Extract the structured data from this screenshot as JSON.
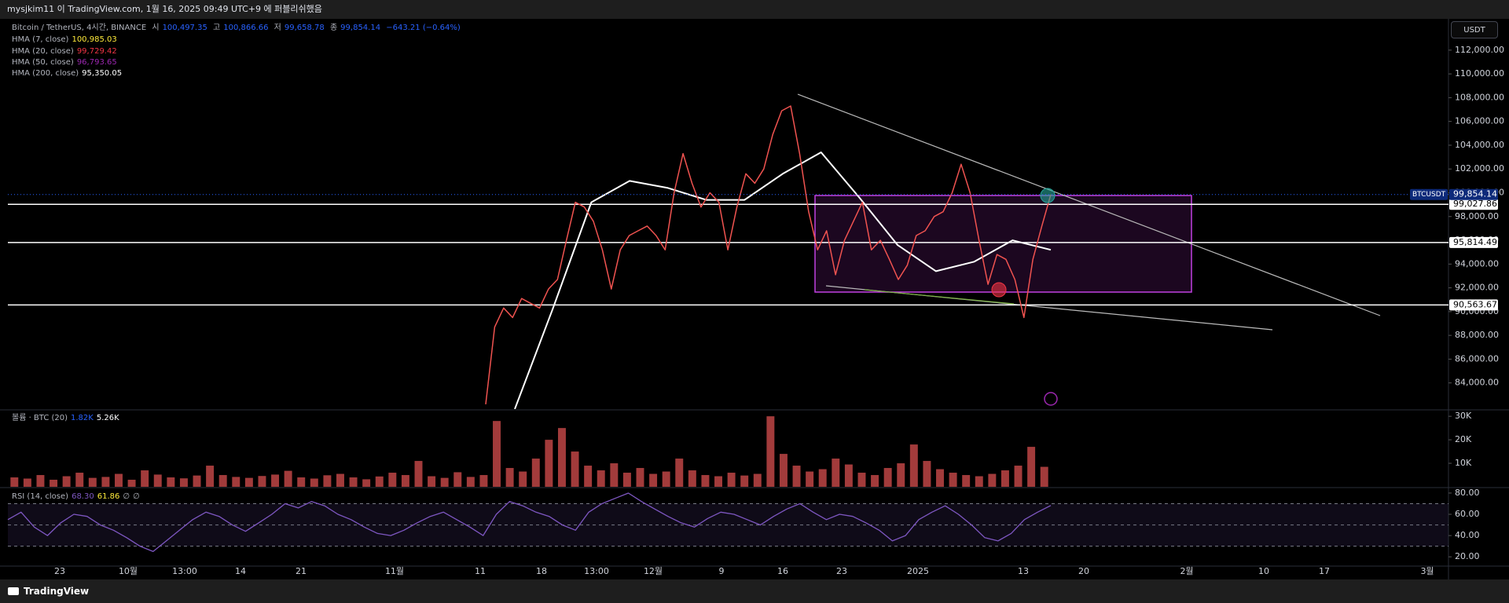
{
  "header": {
    "text": "mysjkim11 이 TradingView.com, 1월 16, 2025 09:49 UTC+9 에 퍼블리쉬했음"
  },
  "currency_button": "USDT",
  "legend": {
    "symbol": "Bitcoin / TetherUS, 4시간, BINANCE",
    "ohlc": [
      {
        "label": "시",
        "value": "100,497.35"
      },
      {
        "label": "고",
        "value": "100,866.66"
      },
      {
        "label": "저",
        "value": "99,658.78"
      },
      {
        "label": "종",
        "value": "99,854.14"
      }
    ],
    "change": "−643.21 (−0.64%)",
    "indicators": [
      {
        "name": "HMA (7, close)",
        "value": "100,985.03",
        "color": "#ffeb3b"
      },
      {
        "name": "HMA (20, close)",
        "value": "99,729.42",
        "color": "#f23645"
      },
      {
        "name": "HMA (50, close)",
        "value": "96,793.65",
        "color": "#9c27b0"
      }
    ]
  },
  "chart_data": {
    "type": "line",
    "series": [
      {
        "name": "BTCUSDT",
        "color": "#f05350",
        "last_label": "99,854.14",
        "values": [
          82200,
          88700,
          90300,
          89500,
          91100,
          90700,
          90300,
          91900,
          92700,
          96000,
          99200,
          98800,
          97600,
          95200,
          91900,
          95200,
          96400,
          96800,
          97200,
          96400,
          95200,
          100000,
          103300,
          100800,
          98800,
          100000,
          99200,
          95200,
          98800,
          101600,
          100800,
          102000,
          104900,
          106900,
          107300,
          103300,
          98400,
          95200,
          96800,
          93100,
          96000,
          97600,
          99200,
          95200,
          96000,
          94400,
          92700,
          93900,
          96400,
          96800,
          98000,
          98400,
          100000,
          102400,
          100000,
          96000,
          92300,
          94800,
          94400,
          92700,
          89500,
          94400,
          97200,
          99854.14
        ]
      },
      {
        "name": "HMA (200, close)",
        "color": "#ffffff",
        "value_label": "95,350.05",
        "values": [
          81800,
          90300,
          99200,
          101000,
          100400,
          99400,
          99400,
          101600,
          103400,
          99600,
          95600,
          93400,
          94200,
          96000,
          95200
        ]
      }
    ],
    "ylim": [
      81800,
      114600
    ],
    "yticks": [
      {
        "value": 84000,
        "label": "84,000.00"
      },
      {
        "value": 86000,
        "label": "86,000.00"
      },
      {
        "value": 88000,
        "label": "88,000.00"
      },
      {
        "value": 90000,
        "label": "90,000.00"
      },
      {
        "value": 92000,
        "label": "92,000.00"
      },
      {
        "value": 94000,
        "label": "94,000.00"
      },
      {
        "value": 96000,
        "label": "96,000.00"
      },
      {
        "value": 98000,
        "label": "98,000.00"
      },
      {
        "value": 100000,
        "label": "100,000.00"
      },
      {
        "value": 102000,
        "label": "102,000.00"
      },
      {
        "value": 104000,
        "label": "104,000.00"
      },
      {
        "value": 106000,
        "label": "106,000.00"
      },
      {
        "value": 108000,
        "label": "108,000.00"
      },
      {
        "value": 110000,
        "label": "110,000.00"
      },
      {
        "value": 112000,
        "label": "112,000.00"
      }
    ],
    "levels": [
      {
        "value": 99027.86,
        "label": "99,027.86"
      },
      {
        "value": 95814.49,
        "label": "95,814.49"
      },
      {
        "value": 90563.67,
        "label": "90,563.67"
      }
    ],
    "x_labels": [
      "23",
      "10월",
      "13:00",
      "14",
      "21",
      "11월",
      "11",
      "18",
      "13:00",
      "12월",
      "9",
      "16",
      "23",
      "2025",
      "13",
      "20",
      "2월",
      "10",
      "17",
      "3월"
    ],
    "volume": {
      "legend": "볼륨 · BTC (20)",
      "legend_values": [
        "1.82K",
        "5.26K"
      ],
      "color": "#a23b3b",
      "values": [
        4000,
        3500,
        5000,
        3000,
        4500,
        6000,
        3800,
        4200,
        5500,
        3000,
        7000,
        5200,
        4000,
        3600,
        4800,
        9000,
        5000,
        4200,
        3800,
        4600,
        5200,
        6800,
        4000,
        3500,
        4900,
        5500,
        4000,
        3200,
        4400,
        6000,
        5000,
        11000,
        4500,
        3800,
        6200,
        4200,
        5000,
        28000,
        8000,
        6500,
        12000,
        20000,
        25000,
        15000,
        9000,
        7000,
        10000,
        6000,
        8000,
        5500,
        6500,
        12000,
        7000,
        5000,
        4500,
        6000,
        4800,
        5500,
        30000,
        14000,
        9000,
        6500,
        7500,
        12000,
        9500,
        6000,
        5000,
        8000,
        10000,
        18000,
        11000,
        7500,
        6000,
        5000,
        4500,
        5500,
        7000,
        9000,
        17000,
        8500
      ],
      "ylim": [
        0,
        32400
      ],
      "yticks": [
        {
          "value": 10000,
          "label": "10K"
        },
        {
          "value": 20000,
          "label": "20K"
        },
        {
          "value": 30000,
          "label": "30K"
        }
      ]
    },
    "rsi": {
      "legend": "RSI (14, close)",
      "legend_values": [
        "68.30",
        "61.86",
        "∅",
        "∅"
      ],
      "color": "#7e57c2",
      "values": [
        55,
        62,
        48,
        40,
        52,
        60,
        58,
        50,
        45,
        38,
        30,
        25,
        35,
        45,
        55,
        62,
        58,
        50,
        44,
        52,
        60,
        70,
        66,
        72,
        68,
        60,
        55,
        48,
        42,
        40,
        45,
        52,
        58,
        62,
        55,
        48,
        40,
        60,
        72,
        68,
        62,
        58,
        50,
        45,
        62,
        70,
        75,
        80,
        72,
        65,
        58,
        52,
        48,
        56,
        62,
        60,
        55,
        50,
        58,
        65,
        70,
        62,
        55,
        60,
        58,
        52,
        45,
        35,
        40,
        55,
        62,
        68,
        60,
        50,
        38,
        35,
        42,
        55,
        62,
        68.3
      ],
      "ylim": [
        12,
        84.4
      ],
      "yticks": [
        {
          "value": 20,
          "label": "20.00"
        },
        {
          "value": 40,
          "label": "40.00"
        },
        {
          "value": 60,
          "label": "60.00"
        },
        {
          "value": 80,
          "label": "80.00"
        }
      ],
      "bands": [
        70,
        50,
        30
      ]
    }
  },
  "footer": {
    "brand": "TradingView"
  }
}
